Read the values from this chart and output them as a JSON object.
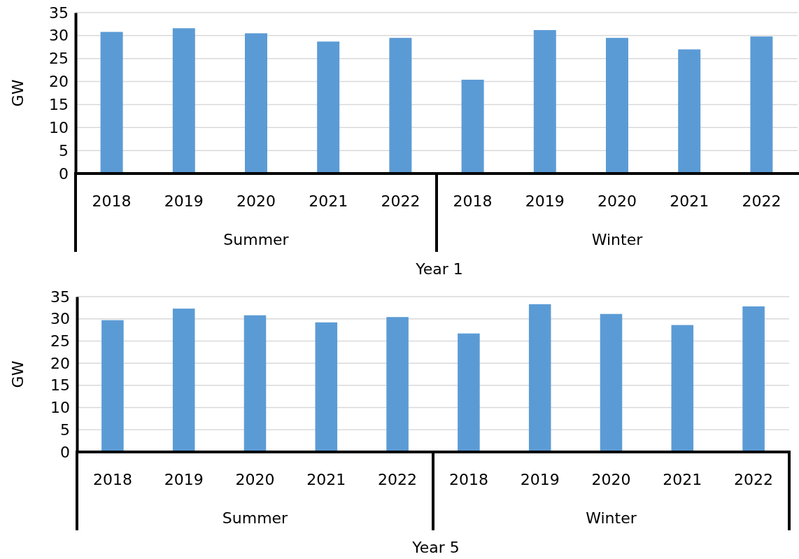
{
  "chart_data": [
    {
      "type": "bar",
      "xlabel": "Year 1",
      "ylabel": "GW",
      "categories": [
        "2018",
        "2019",
        "2020",
        "2021",
        "2022",
        "2018",
        "2019",
        "2020",
        "2021",
        "2022"
      ],
      "values": [
        30.8,
        31.6,
        30.5,
        28.7,
        29.5,
        20.4,
        31.2,
        29.5,
        27.0,
        29.8
      ],
      "color": "#5b9bd5",
      "ylim": [
        0,
        35
      ],
      "yticks": [
        0,
        5,
        10,
        15,
        20,
        25,
        30,
        35
      ],
      "grid": "y",
      "annotations": [
        "Summer",
        "Winter"
      ]
    },
    {
      "type": "bar",
      "xlabel": "Year 5",
      "ylabel": "GW",
      "categories": [
        "2018",
        "2019",
        "2020",
        "2021",
        "2022",
        "2018",
        "2019",
        "2020",
        "2021",
        "2022"
      ],
      "values": [
        29.7,
        32.3,
        30.8,
        29.2,
        30.4,
        26.7,
        33.3,
        31.1,
        28.6,
        32.8
      ],
      "color": "#5b9bd5",
      "ylim": [
        0,
        35
      ],
      "yticks": [
        0,
        5,
        10,
        15,
        20,
        25,
        30,
        35
      ],
      "grid": "y",
      "annotations": [
        "Summer",
        "Winter"
      ]
    }
  ]
}
